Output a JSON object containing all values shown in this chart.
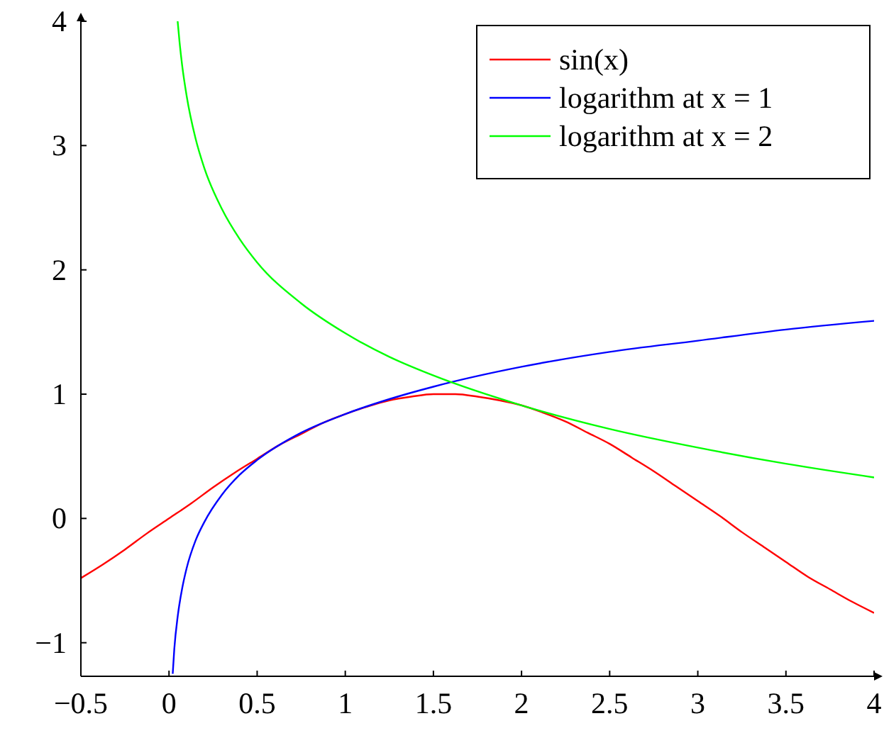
{
  "chart_data": {
    "type": "line",
    "xlim": [
      -0.5,
      4
    ],
    "ylim": [
      -1.27,
      4
    ],
    "xticks": [
      {
        "value": -0.5,
        "label": "−0.5"
      },
      0,
      0.5,
      1,
      1.5,
      2,
      2.5,
      3,
      3.5,
      4
    ],
    "yticks": [
      {
        "value": -1,
        "label": "−1"
      },
      0,
      1,
      2,
      3,
      4
    ],
    "grid": false,
    "legend": "top right",
    "marker": "none",
    "line_style": "solid",
    "series": [
      {
        "name": "sin(x)",
        "color": "#ff0000",
        "x": [
          -0.5,
          -0.375,
          -0.25,
          -0.125,
          0,
          0.125,
          0.25,
          0.375,
          0.5,
          0.625,
          0.75,
          0.875,
          1,
          1.125,
          1.25,
          1.375,
          1.5,
          1.625,
          1.75,
          1.875,
          2,
          2.125,
          2.25,
          2.375,
          2.5,
          2.625,
          2.75,
          2.875,
          3,
          3.125,
          3.25,
          3.375,
          3.5,
          3.625,
          3.75,
          3.875,
          4
        ],
        "values": [
          -0.48,
          -0.37,
          -0.25,
          -0.12,
          0,
          0.12,
          0.25,
          0.37,
          0.48,
          0.59,
          0.68,
          0.77,
          0.84,
          0.9,
          0.95,
          0.98,
          1.0,
          1.0,
          0.98,
          0.95,
          0.91,
          0.85,
          0.78,
          0.69,
          0.6,
          0.49,
          0.38,
          0.26,
          0.14,
          0.02,
          -0.11,
          -0.23,
          -0.35,
          -0.47,
          -0.57,
          -0.67,
          -0.76
        ]
      },
      {
        "name": "logarithm at x = 1",
        "color": "#0000ff",
        "x": [
          0.021,
          0.03,
          0.05,
          0.075,
          0.1,
          0.15,
          0.2,
          0.3,
          0.4,
          0.5,
          0.75,
          1,
          1.25,
          1.5,
          2,
          2.5,
          3,
          3.5,
          4
        ],
        "values": [
          -1.25,
          -1.05,
          -0.78,
          -0.56,
          -0.4,
          -0.18,
          -0.03,
          0.19,
          0.35,
          0.47,
          0.69,
          0.84,
          0.96,
          1.06,
          1.22,
          1.34,
          1.43,
          1.52,
          1.59
        ]
      },
      {
        "name": "logarithm at x = 2",
        "color": "#00ff00",
        "x": [
          0.049,
          0.06,
          0.075,
          0.1,
          0.15,
          0.2,
          0.3,
          0.4,
          0.5,
          0.75,
          1,
          1.25,
          1.5,
          2,
          2.5,
          3,
          3.5,
          4
        ],
        "values": [
          4.0,
          3.83,
          3.64,
          3.4,
          3.06,
          2.82,
          2.49,
          2.25,
          2.06,
          1.73,
          1.49,
          1.3,
          1.15,
          0.91,
          0.72,
          0.57,
          0.44,
          0.33
        ]
      }
    ]
  }
}
